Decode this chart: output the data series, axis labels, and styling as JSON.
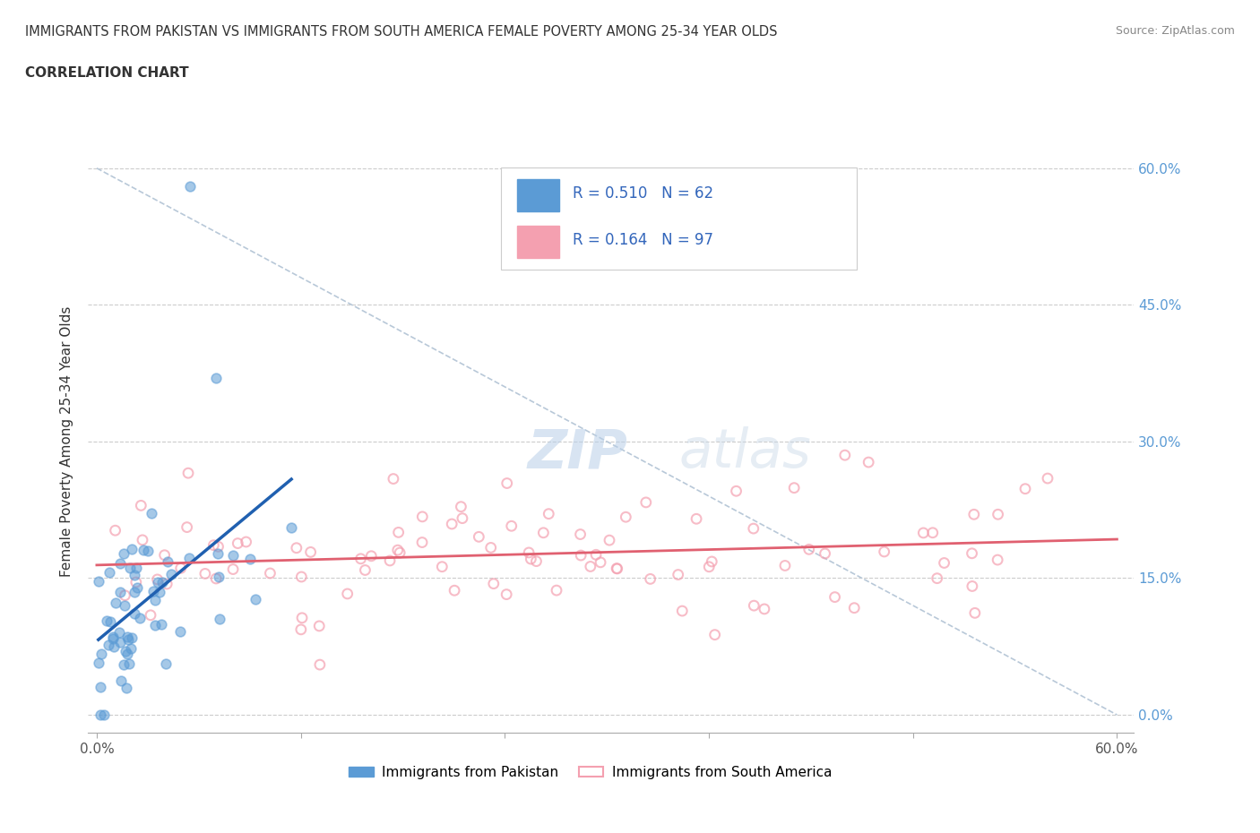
{
  "title": "IMMIGRANTS FROM PAKISTAN VS IMMIGRANTS FROM SOUTH AMERICA FEMALE POVERTY AMONG 25-34 YEAR OLDS",
  "subtitle": "CORRELATION CHART",
  "source": "Source: ZipAtlas.com",
  "ylabel": "Female Poverty Among 25-34 Year Olds",
  "ytick_values": [
    0.0,
    0.15,
    0.3,
    0.45,
    0.6
  ],
  "ytick_labels": [
    "0.0%",
    "15.0%",
    "30.0%",
    "45.0%",
    "60.0%"
  ],
  "xtick_values": [
    0.0,
    0.12,
    0.24,
    0.36,
    0.48,
    0.6
  ],
  "xmin": 0.0,
  "xmax": 0.6,
  "ymin": 0.0,
  "ymax": 0.6,
  "pakistan_color": "#5b9bd5",
  "south_america_color": "#f4a0b0",
  "pakistan_line_color": "#2060b0",
  "south_america_line_color": "#e06070",
  "pakistan_R": 0.51,
  "pakistan_N": 62,
  "south_america_R": 0.164,
  "south_america_N": 97,
  "legend_label_1": "Immigrants from Pakistan",
  "legend_label_2": "Immigrants from South America",
  "watermark_zip": "ZIP",
  "watermark_atlas": "atlas",
  "diag_color": "#b0c4de"
}
